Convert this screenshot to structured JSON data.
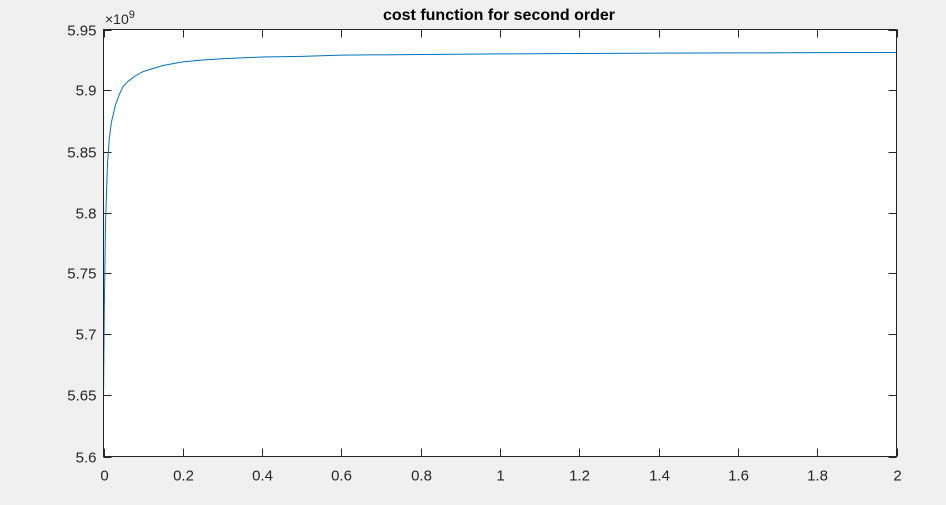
{
  "chart_data": {
    "type": "line",
    "title": "cost function for second order",
    "xlabel": "",
    "ylabel": "",
    "xlim": [
      0,
      2
    ],
    "ylim": [
      5.6,
      5.95
    ],
    "y_exponent_prefix": "×10",
    "y_exponent_power": "9",
    "x_ticks": [
      0,
      0.2,
      0.4,
      0.6,
      0.8,
      1,
      1.2,
      1.4,
      1.6,
      1.8,
      2
    ],
    "x_tick_labels": [
      "0",
      "0.2",
      "0.4",
      "0.6",
      "0.8",
      "1",
      "1.2",
      "1.4",
      "1.6",
      "1.8",
      "2"
    ],
    "y_ticks": [
      5.6,
      5.65,
      5.7,
      5.75,
      5.8,
      5.85,
      5.9,
      5.95
    ],
    "y_tick_labels": [
      "5.6",
      "5.65",
      "5.7",
      "5.75",
      "5.8",
      "5.85",
      "5.9",
      "5.95"
    ],
    "grid": false,
    "series": [
      {
        "color": "#0072bd",
        "x": [
          0,
          0.002,
          0.005,
          0.01,
          0.015,
          0.02,
          0.03,
          0.04,
          0.05,
          0.06,
          0.08,
          0.1,
          0.125,
          0.15,
          0.2,
          0.25,
          0.3,
          0.4,
          0.5,
          0.6,
          0.8,
          1.0,
          1.2,
          1.4,
          1.6,
          1.8,
          2.0
        ],
        "y": [
          5.645,
          5.72,
          5.79,
          5.84,
          5.862,
          5.874,
          5.888,
          5.897,
          5.9035,
          5.907,
          5.912,
          5.9155,
          5.918,
          5.9205,
          5.9235,
          5.925,
          5.926,
          5.9275,
          5.928,
          5.929,
          5.9295,
          5.93,
          5.9303,
          5.9306,
          5.9308,
          5.931,
          5.9312
        ]
      }
    ]
  }
}
